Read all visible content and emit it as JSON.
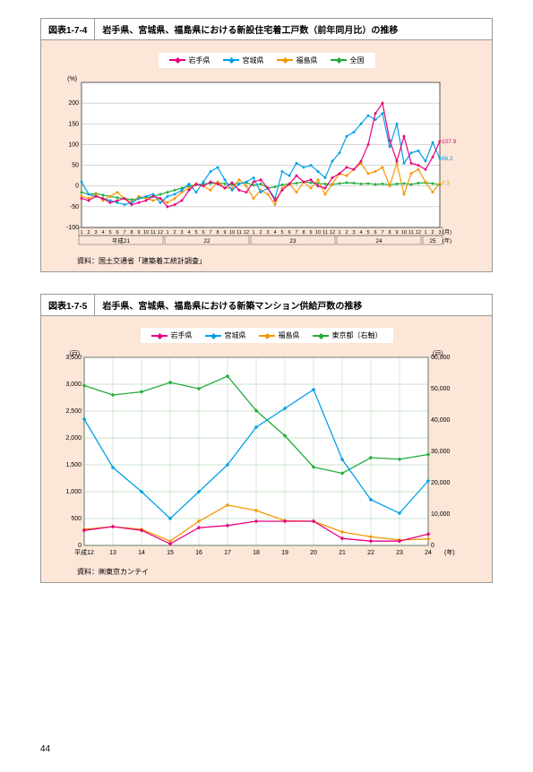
{
  "page_number": "44",
  "chart1": {
    "id": "図表1-7-4",
    "title": "岩手県、宮城県、福島県における新設住宅着工戸数（前年同月比）の推移",
    "legend": [
      {
        "label": "岩手県",
        "color": "#e6007e"
      },
      {
        "label": "宮城県",
        "color": "#00a0e9"
      },
      {
        "label": "福島県",
        "color": "#f39800"
      },
      {
        "label": "全国",
        "color": "#22ac38"
      }
    ],
    "y_unit": "(%)",
    "x_unit_top": "(月)",
    "x_unit_bot": "(年)",
    "ylim": [
      -100,
      250
    ],
    "yticks": [
      -100,
      -50,
      0,
      50,
      100,
      150,
      200
    ],
    "x_months": 51,
    "year_groups": [
      {
        "label": "平成21",
        "span": 12
      },
      {
        "label": "22",
        "span": 12
      },
      {
        "label": "23",
        "span": 12
      },
      {
        "label": "24",
        "span": 12
      },
      {
        "label": "25",
        "span": 3
      }
    ],
    "annotations": [
      {
        "t": 50,
        "v": 107.9,
        "text": "107.9",
        "color": "#e6007e"
      },
      {
        "t": 51,
        "v": 66.2,
        "text": "66.2",
        "color": "#00a0e9"
      },
      {
        "t": 51,
        "v": 7.3,
        "text": "7.3",
        "color": "#f39800"
      }
    ],
    "series": {
      "iwate": [
        -30,
        -35,
        -25,
        -30,
        -40,
        -35,
        -30,
        -45,
        -40,
        -35,
        -25,
        -30,
        -50,
        -45,
        -35,
        -10,
        5,
        0,
        10,
        5,
        -5,
        8,
        -10,
        -15,
        10,
        15,
        -5,
        -35,
        -10,
        5,
        25,
        10,
        15,
        0,
        -5,
        20,
        30,
        45,
        40,
        60,
        100,
        175,
        200,
        110,
        60,
        120,
        55,
        50,
        40,
        70,
        107.9
      ],
      "miyagi": [
        10,
        -20,
        -25,
        -30,
        -35,
        -40,
        -45,
        -40,
        -30,
        -25,
        -20,
        -40,
        -25,
        -20,
        -10,
        5,
        -15,
        10,
        35,
        45,
        15,
        -10,
        5,
        10,
        20,
        -15,
        -5,
        -30,
        35,
        25,
        55,
        45,
        50,
        35,
        20,
        60,
        80,
        120,
        130,
        150,
        170,
        160,
        175,
        95,
        150,
        55,
        80,
        85,
        60,
        105,
        66.2
      ],
      "fukushima": [
        -25,
        -30,
        -20,
        -35,
        -25,
        -15,
        -30,
        -40,
        -25,
        -30,
        -35,
        -30,
        -40,
        -30,
        -15,
        -5,
        5,
        0,
        -10,
        10,
        -5,
        -5,
        15,
        0,
        -30,
        -10,
        -20,
        -45,
        -5,
        5,
        -15,
        10,
        -5,
        15,
        -20,
        5,
        30,
        25,
        40,
        55,
        30,
        35,
        45,
        0,
        55,
        -20,
        30,
        40,
        10,
        -15,
        7.3
      ],
      "zenkoku": [
        -15,
        -20,
        -18,
        -22,
        -25,
        -28,
        -30,
        -33,
        -30,
        -28,
        -25,
        -20,
        -15,
        -10,
        -5,
        0,
        3,
        5,
        6,
        8,
        5,
        4,
        6,
        8,
        2,
        5,
        -5,
        -2,
        3,
        5,
        7,
        10,
        8,
        6,
        5,
        4,
        6,
        8,
        7,
        5,
        6,
        4,
        5,
        3,
        5,
        6,
        4,
        7,
        8,
        6,
        3.5
      ]
    },
    "grid_color": "#777",
    "bg": "#ffffff",
    "source": "資料：国土交通省「建築着工統計調査」",
    "axis_label_fontsize": 7
  },
  "chart2": {
    "id": "図表1-7-5",
    "title": "岩手県、宮城県、福島県における新築マンション供給戸数の推移",
    "legend": [
      {
        "label": "岩手県",
        "color": "#e6007e"
      },
      {
        "label": "宮城県",
        "color": "#00a0e9"
      },
      {
        "label": "福島県",
        "color": "#f39800"
      },
      {
        "label": "東京都（右軸）",
        "color": "#22ac38"
      }
    ],
    "y_unit_left": "(戸)",
    "y_unit_right": "(戸)",
    "x_unit": "(年)",
    "ylim_left": [
      0,
      3500
    ],
    "yticks_left": [
      0,
      500,
      1000,
      1500,
      2000,
      2500,
      3000,
      3500
    ],
    "ylim_right": [
      0,
      60000
    ],
    "yticks_right": [
      0,
      10000,
      20000,
      30000,
      40000,
      50000,
      60000
    ],
    "x_labels": [
      "平成12",
      "13",
      "14",
      "15",
      "16",
      "17",
      "18",
      "19",
      "20",
      "21",
      "22",
      "23",
      "24"
    ],
    "series": {
      "iwate": [
        280,
        350,
        280,
        30,
        330,
        370,
        450,
        450,
        450,
        130,
        80,
        80,
        210
      ],
      "miyagi": [
        2350,
        1450,
        1000,
        500,
        1000,
        1500,
        2200,
        2550,
        2900,
        1600,
        850,
        600,
        1200
      ],
      "fukushima": [
        300,
        350,
        300,
        80,
        450,
        750,
        650,
        460,
        450,
        250,
        160,
        100,
        120
      ],
      "tokyo": [
        51000,
        48000,
        49000,
        52000,
        50000,
        54000,
        43000,
        35000,
        25000,
        23000,
        28000,
        27500,
        29000
      ]
    },
    "grid_color": "#82b87d",
    "bg": "#ffffff",
    "source": "資料：㈱東京カンテイ",
    "axis_label_fontsize": 7
  }
}
